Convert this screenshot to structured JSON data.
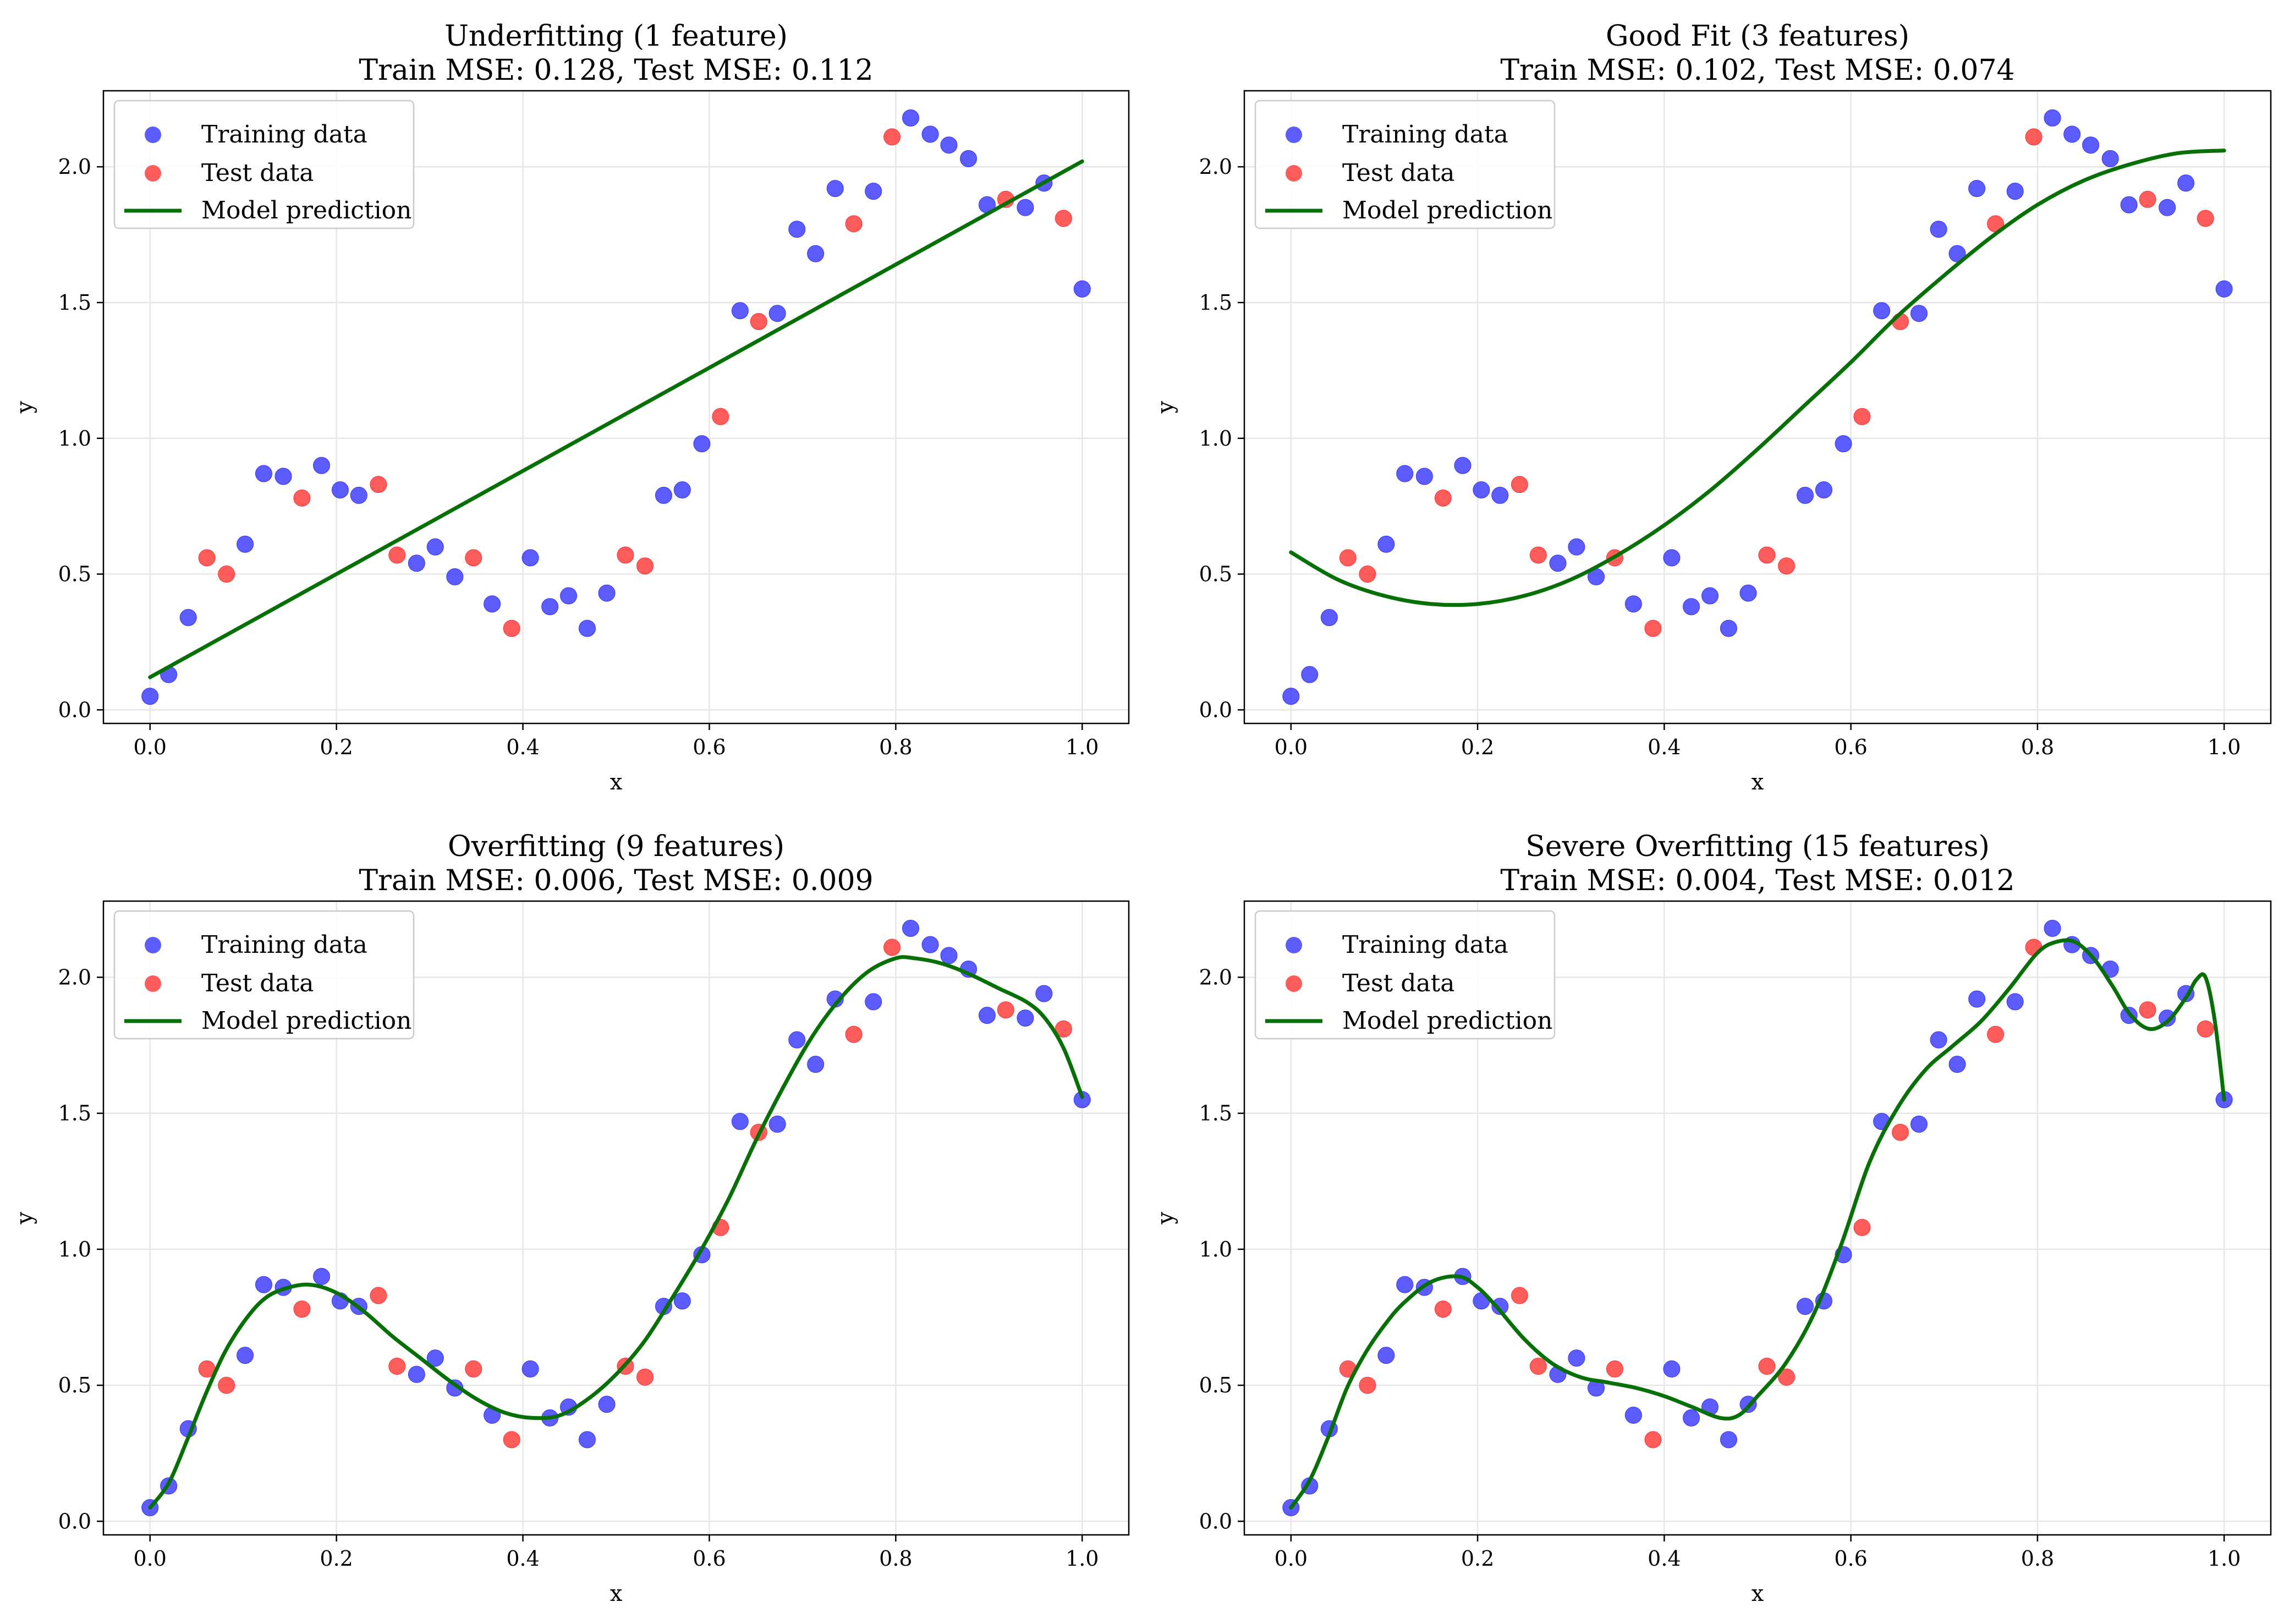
{
  "colors": {
    "train": "#3333ff",
    "test": "#ff3333",
    "model": "#067006",
    "grid": "#e6e6e6",
    "axis": "#000000"
  },
  "legend": {
    "training": "Training data",
    "test": "Test data",
    "model": "Model prediction"
  },
  "chart_data": [
    {
      "type": "scatter",
      "title": "Underfitting (1 feature)",
      "subtitle": "Train MSE: 0.128, Test MSE: 0.112",
      "xlabel": "x",
      "ylabel": "y",
      "xlim": [
        -0.05,
        1.05
      ],
      "ylim": [
        -0.05,
        2.28
      ],
      "xticks": [
        "0.0",
        "0.2",
        "0.4",
        "0.6",
        "0.8",
        "1.0"
      ],
      "yticks": [
        "0.0",
        "0.5",
        "1.0",
        "1.5",
        "2.0"
      ],
      "grid": true,
      "legend_position": "upper-left",
      "degree": 1
    },
    {
      "type": "scatter",
      "title": "Good Fit (3 features)",
      "subtitle": "Train MSE: 0.102, Test MSE: 0.074",
      "xlabel": "x",
      "ylabel": "y",
      "xlim": [
        -0.05,
        1.05
      ],
      "ylim": [
        -0.05,
        2.28
      ],
      "xticks": [
        "0.0",
        "0.2",
        "0.4",
        "0.6",
        "0.8",
        "1.0"
      ],
      "yticks": [
        "0.0",
        "0.5",
        "1.0",
        "1.5",
        "2.0"
      ],
      "grid": true,
      "legend_position": "upper-left",
      "degree": 3
    },
    {
      "type": "scatter",
      "title": "Overfitting (9 features)",
      "subtitle": "Train MSE: 0.006, Test MSE: 0.009",
      "xlabel": "x",
      "ylabel": "y",
      "xlim": [
        -0.05,
        1.05
      ],
      "ylim": [
        -0.05,
        2.28
      ],
      "xticks": [
        "0.0",
        "0.2",
        "0.4",
        "0.6",
        "0.8",
        "1.0"
      ],
      "yticks": [
        "0.0",
        "0.5",
        "1.0",
        "1.5",
        "2.0"
      ],
      "grid": true,
      "legend_position": "upper-left",
      "degree": 9
    },
    {
      "type": "scatter",
      "title": "Severe Overfitting (15 features)",
      "subtitle": "Train MSE: 0.004, Test MSE: 0.012",
      "xlabel": "x",
      "ylabel": "y",
      "xlim": [
        -0.05,
        1.05
      ],
      "ylim": [
        -0.05,
        2.28
      ],
      "xticks": [
        "0.0",
        "0.2",
        "0.4",
        "0.6",
        "0.8",
        "1.0"
      ],
      "yticks": [
        "0.0",
        "0.5",
        "1.0",
        "1.5",
        "2.0"
      ],
      "grid": true,
      "legend_position": "upper-left",
      "degree": 15
    }
  ],
  "shared_points": {
    "training": [
      [
        0.0,
        0.05
      ],
      [
        0.02,
        0.13
      ],
      [
        0.041,
        0.34
      ],
      [
        0.102,
        0.61
      ],
      [
        0.122,
        0.87
      ],
      [
        0.143,
        0.86
      ],
      [
        0.184,
        0.9
      ],
      [
        0.204,
        0.81
      ],
      [
        0.224,
        0.79
      ],
      [
        0.286,
        0.54
      ],
      [
        0.306,
        0.6
      ],
      [
        0.327,
        0.49
      ],
      [
        0.367,
        0.39
      ],
      [
        0.408,
        0.56
      ],
      [
        0.429,
        0.38
      ],
      [
        0.449,
        0.42
      ],
      [
        0.469,
        0.3
      ],
      [
        0.49,
        0.43
      ],
      [
        0.551,
        0.79
      ],
      [
        0.571,
        0.81
      ],
      [
        0.592,
        0.98
      ],
      [
        0.633,
        1.47
      ],
      [
        0.673,
        1.46
      ],
      [
        0.694,
        1.77
      ],
      [
        0.714,
        1.68
      ],
      [
        0.735,
        1.92
      ],
      [
        0.776,
        1.91
      ],
      [
        0.816,
        2.18
      ],
      [
        0.837,
        2.12
      ],
      [
        0.857,
        2.08
      ],
      [
        0.878,
        2.03
      ],
      [
        0.898,
        1.86
      ],
      [
        0.939,
        1.85
      ],
      [
        0.959,
        1.94
      ],
      [
        1.0,
        1.55
      ]
    ],
    "test": [
      [
        0.061,
        0.56
      ],
      [
        0.082,
        0.5
      ],
      [
        0.163,
        0.78
      ],
      [
        0.245,
        0.83
      ],
      [
        0.265,
        0.57
      ],
      [
        0.347,
        0.56
      ],
      [
        0.388,
        0.3
      ],
      [
        0.51,
        0.57
      ],
      [
        0.531,
        0.53
      ],
      [
        0.612,
        1.08
      ],
      [
        0.653,
        1.43
      ],
      [
        0.755,
        1.79
      ],
      [
        0.796,
        2.11
      ],
      [
        0.918,
        1.88
      ],
      [
        0.98,
        1.81
      ]
    ]
  },
  "model_curves": [
    [
      [
        0.0,
        0.12
      ],
      [
        1.0,
        2.02
      ]
    ],
    [
      [
        0.0,
        0.58
      ],
      [
        0.05,
        0.48
      ],
      [
        0.1,
        0.42
      ],
      [
        0.15,
        0.39
      ],
      [
        0.2,
        0.39
      ],
      [
        0.25,
        0.42
      ],
      [
        0.3,
        0.48
      ],
      [
        0.35,
        0.57
      ],
      [
        0.4,
        0.68
      ],
      [
        0.45,
        0.81
      ],
      [
        0.5,
        0.96
      ],
      [
        0.55,
        1.12
      ],
      [
        0.6,
        1.28
      ],
      [
        0.65,
        1.45
      ],
      [
        0.7,
        1.6
      ],
      [
        0.75,
        1.74
      ],
      [
        0.8,
        1.86
      ],
      [
        0.85,
        1.95
      ],
      [
        0.9,
        2.01
      ],
      [
        0.95,
        2.05
      ],
      [
        1.0,
        2.06
      ]
    ],
    [
      [
        0.0,
        0.05
      ],
      [
        0.02,
        0.14
      ],
      [
        0.04,
        0.3
      ],
      [
        0.06,
        0.47
      ],
      [
        0.08,
        0.62
      ],
      [
        0.1,
        0.73
      ],
      [
        0.12,
        0.81
      ],
      [
        0.14,
        0.85
      ],
      [
        0.17,
        0.87
      ],
      [
        0.2,
        0.84
      ],
      [
        0.23,
        0.77
      ],
      [
        0.26,
        0.68
      ],
      [
        0.29,
        0.6
      ],
      [
        0.32,
        0.52
      ],
      [
        0.35,
        0.45
      ],
      [
        0.38,
        0.4
      ],
      [
        0.41,
        0.38
      ],
      [
        0.44,
        0.39
      ],
      [
        0.47,
        0.45
      ],
      [
        0.5,
        0.54
      ],
      [
        0.53,
        0.66
      ],
      [
        0.56,
        0.82
      ],
      [
        0.59,
        0.99
      ],
      [
        0.62,
        1.18
      ],
      [
        0.65,
        1.4
      ],
      [
        0.68,
        1.6
      ],
      [
        0.71,
        1.78
      ],
      [
        0.74,
        1.92
      ],
      [
        0.77,
        2.02
      ],
      [
        0.8,
        2.07
      ],
      [
        0.82,
        2.07
      ],
      [
        0.85,
        2.05
      ],
      [
        0.88,
        2.01
      ],
      [
        0.91,
        1.96
      ],
      [
        0.94,
        1.91
      ],
      [
        0.96,
        1.85
      ],
      [
        0.98,
        1.74
      ],
      [
        1.0,
        1.56
      ]
    ],
    [
      [
        0.0,
        0.05
      ],
      [
        0.02,
        0.15
      ],
      [
        0.04,
        0.31
      ],
      [
        0.06,
        0.49
      ],
      [
        0.08,
        0.62
      ],
      [
        0.1,
        0.72
      ],
      [
        0.12,
        0.8
      ],
      [
        0.15,
        0.88
      ],
      [
        0.18,
        0.9
      ],
      [
        0.2,
        0.86
      ],
      [
        0.22,
        0.79
      ],
      [
        0.25,
        0.67
      ],
      [
        0.28,
        0.58
      ],
      [
        0.31,
        0.53
      ],
      [
        0.34,
        0.51
      ],
      [
        0.37,
        0.49
      ],
      [
        0.4,
        0.46
      ],
      [
        0.43,
        0.42
      ],
      [
        0.46,
        0.38
      ],
      [
        0.48,
        0.39
      ],
      [
        0.5,
        0.46
      ],
      [
        0.53,
        0.58
      ],
      [
        0.56,
        0.76
      ],
      [
        0.59,
        1.02
      ],
      [
        0.62,
        1.32
      ],
      [
        0.65,
        1.52
      ],
      [
        0.68,
        1.66
      ],
      [
        0.71,
        1.75
      ],
      [
        0.74,
        1.84
      ],
      [
        0.77,
        1.96
      ],
      [
        0.8,
        2.09
      ],
      [
        0.82,
        2.13
      ],
      [
        0.84,
        2.13
      ],
      [
        0.86,
        2.07
      ],
      [
        0.88,
        1.97
      ],
      [
        0.9,
        1.86
      ],
      [
        0.92,
        1.81
      ],
      [
        0.94,
        1.84
      ],
      [
        0.96,
        1.93
      ],
      [
        0.97,
        1.99
      ],
      [
        0.98,
        2.0
      ],
      [
        0.99,
        1.84
      ],
      [
        1.0,
        1.55
      ]
    ]
  ]
}
